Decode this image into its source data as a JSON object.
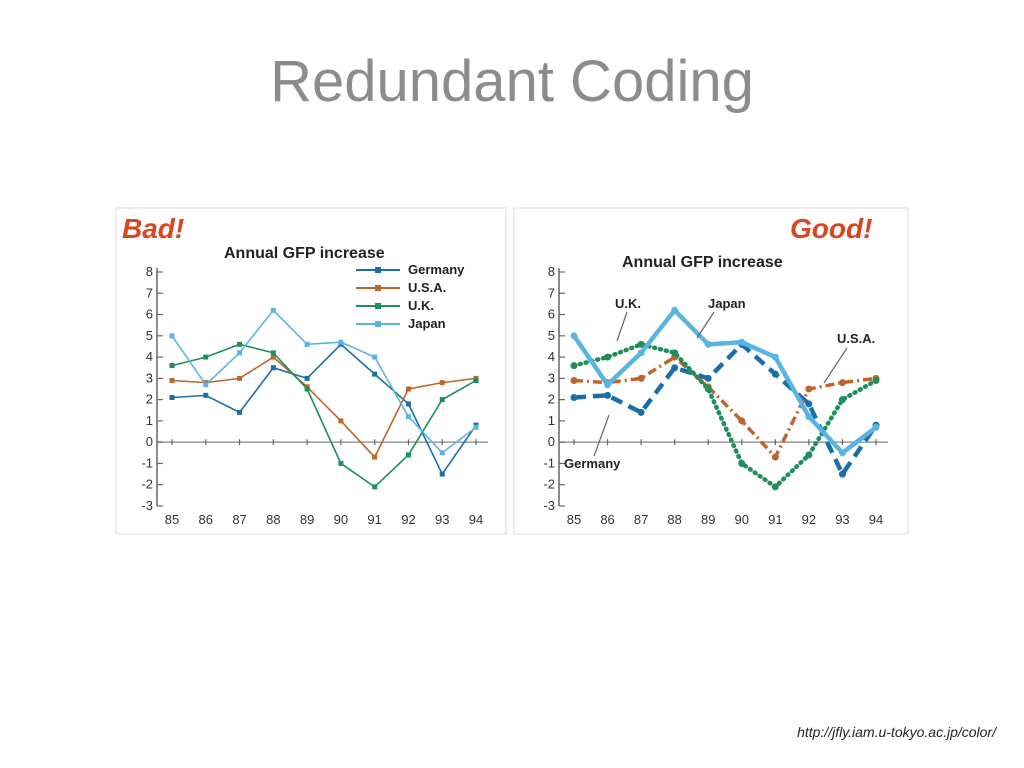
{
  "slide": {
    "title": "Redundant Coding",
    "source": "http://jfly.iam.u-tokyo.ac.jp/color/"
  },
  "colors": {
    "Germany": "#1a6fa8",
    "U.S.A.": "#c0642e",
    "U.K.": "#1e8e5a",
    "Japan": "#5ab4e0",
    "badge": "#d9451f"
  },
  "chart_data": [
    {
      "type": "line",
      "badge": "Bad!",
      "title": "Annual GFP increase",
      "categories": [
        "85",
        "86",
        "87",
        "88",
        "89",
        "90",
        "91",
        "92",
        "93",
        "94"
      ],
      "ylim": [
        -3,
        8
      ],
      "yticks": [
        "8",
        "7",
        "6",
        "5",
        "4",
        "3",
        "2",
        "1",
        "0",
        "-1",
        "-2",
        "-3"
      ],
      "legend_position": "top-right",
      "series": [
        {
          "name": "Germany",
          "values": [
            2.1,
            2.2,
            1.4,
            3.5,
            3.0,
            4.6,
            3.2,
            1.8,
            -1.5,
            0.8
          ]
        },
        {
          "name": "U.S.A.",
          "values": [
            2.9,
            2.8,
            3.0,
            4.0,
            2.6,
            1.0,
            -0.7,
            2.5,
            2.8,
            3.0
          ]
        },
        {
          "name": "U.K.",
          "values": [
            3.6,
            4.0,
            4.6,
            4.2,
            2.5,
            -1.0,
            -2.1,
            -0.6,
            2.0,
            2.9
          ]
        },
        {
          "name": "Japan",
          "values": [
            5.0,
            2.7,
            4.2,
            6.2,
            4.6,
            4.7,
            4.0,
            1.2,
            -0.5,
            0.7
          ]
        }
      ]
    },
    {
      "type": "line",
      "badge": "Good!",
      "title": "Annual GFP increase",
      "categories": [
        "85",
        "86",
        "87",
        "88",
        "89",
        "90",
        "91",
        "92",
        "93",
        "94"
      ],
      "ylim": [
        -3,
        8
      ],
      "yticks": [
        "8",
        "7",
        "6",
        "5",
        "4",
        "3",
        "2",
        "1",
        "0",
        "-1",
        "-2",
        "-3"
      ],
      "legend_position": "none",
      "labels": {
        "uk": "U.K.",
        "japan": "Japan",
        "usa": "U.S.A.",
        "germany": "Germany"
      },
      "series": [
        {
          "name": "Germany",
          "values": [
            2.1,
            2.2,
            1.4,
            3.5,
            3.0,
            4.6,
            3.2,
            1.8,
            -1.5,
            0.8
          ]
        },
        {
          "name": "U.S.A.",
          "values": [
            2.9,
            2.8,
            3.0,
            4.0,
            2.6,
            1.0,
            -0.7,
            2.5,
            2.8,
            3.0
          ]
        },
        {
          "name": "U.K.",
          "values": [
            3.6,
            4.0,
            4.6,
            4.2,
            2.5,
            -1.0,
            -2.1,
            -0.6,
            2.0,
            2.9
          ]
        },
        {
          "name": "Japan",
          "values": [
            5.0,
            2.7,
            4.2,
            6.2,
            4.6,
            4.7,
            4.0,
            1.2,
            -0.5,
            0.7
          ]
        }
      ]
    }
  ]
}
